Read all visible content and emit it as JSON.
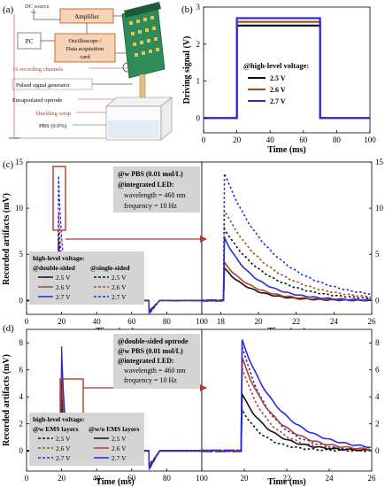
{
  "panel_labels": {
    "a": "(a)",
    "b": "(b)",
    "c": "(c)",
    "d": "(d)"
  },
  "schematic": {
    "dc_source": "DC source",
    "amplifier": "Amplifier",
    "pc": "PC",
    "oscilloscope": [
      "Oscilloscope /",
      "Data acquisition",
      "card"
    ],
    "channels": "16 recording channels",
    "pulse_gen": "Pulsed signal generator",
    "optrode": "Encapsulated optrode",
    "shielding": "Shielding setup",
    "pbs": "PBS (0.9%)",
    "colors": {
      "box_fill": "#f6d3b6",
      "box_stroke": "#cc6b3a",
      "label_color": "#c0392b",
      "pcb": "#2e8b57"
    }
  },
  "chart_data": [
    {
      "id": "b",
      "type": "line",
      "title": "",
      "xlabel": "Time (ms)",
      "ylabel": "Driving signal (V)",
      "xlim": [
        0,
        100
      ],
      "ylim": [
        -0.4,
        3.0
      ],
      "xticks": [
        "0",
        "20",
        "40",
        "60",
        "80",
        "100"
      ],
      "yticks": [
        "0",
        "1",
        "2",
        "3"
      ],
      "legend_title": "@high-level voltage:",
      "legend_position": "bottom-center",
      "series": [
        {
          "name": "2.5 V",
          "color": "#111111",
          "x": [
            0,
            20,
            20,
            70,
            70,
            100
          ],
          "y": [
            0,
            0,
            2.5,
            2.5,
            0,
            0
          ]
        },
        {
          "name": "2.6 V",
          "color": "#9a4a1f",
          "x": [
            0,
            20,
            20,
            70,
            70,
            100
          ],
          "y": [
            0,
            0,
            2.6,
            2.6,
            0,
            0
          ]
        },
        {
          "name": "2.7 V",
          "color": "#2b2bd9",
          "x": [
            0,
            20,
            20,
            70,
            70,
            100
          ],
          "y": [
            0,
            0,
            2.7,
            2.7,
            0,
            0
          ]
        }
      ]
    },
    {
      "id": "c",
      "type": "line",
      "ylabel": "Recorded artifacts (mV)",
      "xlabel_left": "Time (ms)",
      "xlabel_right": "Time (ms)",
      "left_xlim": [
        0,
        100
      ],
      "right_xlim": [
        17,
        26
      ],
      "ylim": [
        -1.5,
        15
      ],
      "left_xticks": [
        "0",
        "20",
        "40",
        "60",
        "80",
        "100"
      ],
      "right_xticks": [
        "18",
        "20",
        "22",
        "24",
        "26"
      ],
      "yticks": [
        "0",
        "5",
        "10",
        "15"
      ],
      "annotation": [
        "@w PBS (0.01 mol/L)",
        "@integrated LED:",
        "wavelength = 460 nm",
        "frequency = 10 Hz"
      ],
      "legend_title": "high-level voltage:",
      "legend_groups": [
        "@double-sided",
        "@single-sided"
      ],
      "series": [
        {
          "name": "2.5 V",
          "group": "double",
          "dash": false,
          "color": "#111111",
          "peak": 3.5,
          "tau": 1.4
        },
        {
          "name": "2.6 V",
          "group": "double",
          "dash": false,
          "color": "#b0452a",
          "peak": 4.1,
          "tau": 1.5
        },
        {
          "name": "2.7 V",
          "group": "double",
          "dash": false,
          "color": "#2b2bd9",
          "peak": 6.8,
          "tau": 1.6
        },
        {
          "name": "2.5 V",
          "group": "single",
          "dash": true,
          "color": "#111111",
          "peak": 7.8,
          "tau": 2.2
        },
        {
          "name": "2.6 V",
          "group": "single",
          "dash": true,
          "color": "#b0452a",
          "peak": 9.8,
          "tau": 2.4
        },
        {
          "name": "2.7 V",
          "group": "single",
          "dash": true,
          "color": "#2b2bd9",
          "peak": 13.8,
          "tau": 2.6
        }
      ]
    },
    {
      "id": "d",
      "type": "line",
      "ylabel": "Recorded artifacts (mV)",
      "xlabel_left": "Time (ms)",
      "xlabel_right": "Time (ms)",
      "left_xlim": [
        0,
        100
      ],
      "right_xlim": [
        18,
        26
      ],
      "ylim": [
        -1.5,
        9
      ],
      "left_xticks": [
        "0",
        "20",
        "40",
        "60",
        "80",
        "100"
      ],
      "right_xticks": [
        "20",
        "22",
        "24",
        "26"
      ],
      "yticks": [
        "0",
        "2",
        "4",
        "6",
        "8"
      ],
      "annotation": [
        "@double-sided optrode",
        "@w PBS (0.01 mol/L)",
        "@integrated LED:",
        "wavelength = 460 nm",
        "frequency = 10 Hz"
      ],
      "legend_title": "high-level voltage:",
      "legend_groups": [
        "@w EMS layers",
        "@w/o EMS layers"
      ],
      "series": [
        {
          "name": "2.5 V",
          "group": "w_ems",
          "dash": true,
          "color": "#111111",
          "peak": 3.1,
          "tau": 1.0
        },
        {
          "name": "2.6 V",
          "group": "w_ems",
          "dash": true,
          "color": "#b0452a",
          "peak": 6.2,
          "tau": 1.2
        },
        {
          "name": "2.7 V",
          "group": "w_ems",
          "dash": true,
          "color": "#2b2bd9",
          "peak": 7.8,
          "tau": 1.3
        },
        {
          "name": "2.5 V",
          "group": "wo_ems",
          "dash": false,
          "color": "#111111",
          "peak": 4.2,
          "tau": 1.3
        },
        {
          "name": "2.6 V",
          "group": "wo_ems",
          "dash": false,
          "color": "#b0452a",
          "peak": 6.9,
          "tau": 1.5
        },
        {
          "name": "2.7 V",
          "group": "wo_ems",
          "dash": false,
          "color": "#2b2bd9",
          "peak": 8.2,
          "tau": 1.8
        }
      ]
    }
  ]
}
